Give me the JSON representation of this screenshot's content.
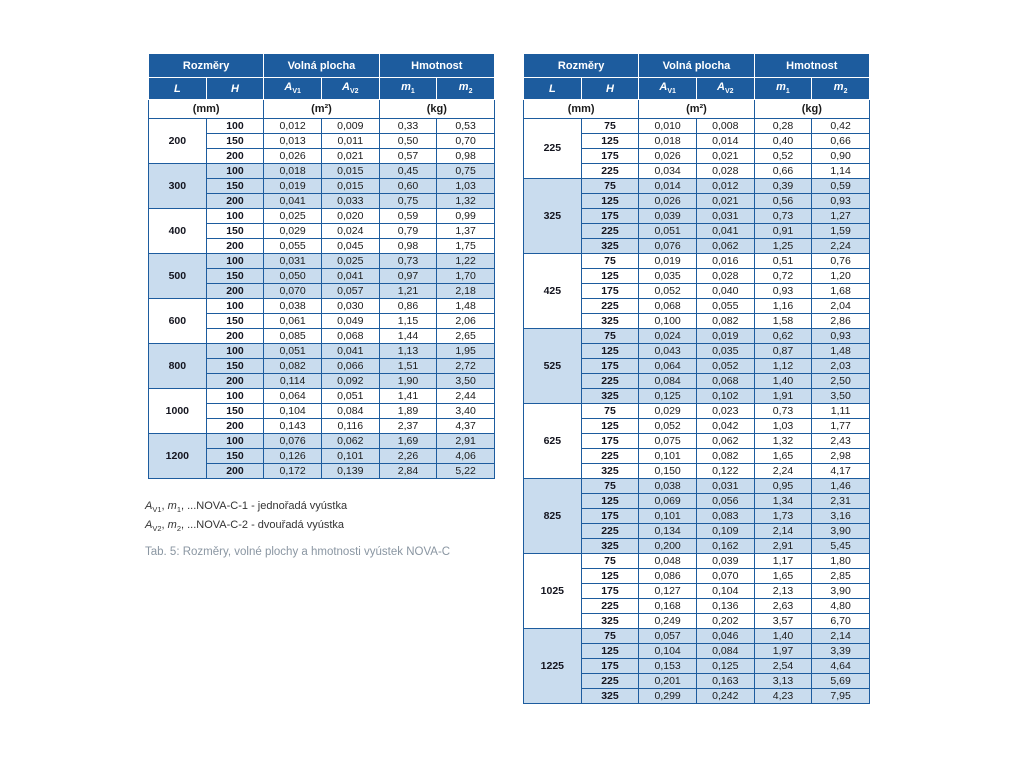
{
  "colors": {
    "header_bg": "#1d5c9e",
    "header_text": "#ffffff",
    "shaded_row_bg": "#c9dcee",
    "border": "#1d5c9e",
    "caption_text": "#8a96a2"
  },
  "tables": [
    {
      "header": {
        "groups": [
          "Rozměry",
          "Volná plocha",
          "Hmotnost"
        ],
        "columns": [
          [
            {
              "t": "L",
              "style": "italic"
            }
          ],
          [
            {
              "t": "H",
              "style": "italic"
            }
          ],
          [
            {
              "t": "A",
              "style": "italic"
            },
            {
              "t": "V1",
              "style": "sub"
            }
          ],
          [
            {
              "t": "A",
              "style": "italic"
            },
            {
              "t": "V2",
              "style": "sub"
            }
          ],
          [
            {
              "t": "m",
              "style": "italic"
            },
            {
              "t": "1",
              "style": "sub"
            }
          ],
          [
            {
              "t": "m",
              "style": "italic"
            },
            {
              "t": "2",
              "style": "sub"
            }
          ]
        ],
        "units": [
          "(mm)",
          "(m²)",
          "(kg)"
        ]
      },
      "groups": [
        {
          "L": "200",
          "shaded": false,
          "rows": [
            [
              "100",
              "0,012",
              "0,009",
              "0,33",
              "0,53"
            ],
            [
              "150",
              "0,013",
              "0,011",
              "0,50",
              "0,70"
            ],
            [
              "200",
              "0,026",
              "0,021",
              "0,57",
              "0,98"
            ]
          ]
        },
        {
          "L": "300",
          "shaded": true,
          "rows": [
            [
              "100",
              "0,018",
              "0,015",
              "0,45",
              "0,75"
            ],
            [
              "150",
              "0,019",
              "0,015",
              "0,60",
              "1,03"
            ],
            [
              "200",
              "0,041",
              "0,033",
              "0,75",
              "1,32"
            ]
          ]
        },
        {
          "L": "400",
          "shaded": false,
          "rows": [
            [
              "100",
              "0,025",
              "0,020",
              "0,59",
              "0,99"
            ],
            [
              "150",
              "0,029",
              "0,024",
              "0,79",
              "1,37"
            ],
            [
              "200",
              "0,055",
              "0,045",
              "0,98",
              "1,75"
            ]
          ]
        },
        {
          "L": "500",
          "shaded": true,
          "rows": [
            [
              "100",
              "0,031",
              "0,025",
              "0,73",
              "1,22"
            ],
            [
              "150",
              "0,050",
              "0,041",
              "0,97",
              "1,70"
            ],
            [
              "200",
              "0,070",
              "0,057",
              "1,21",
              "2,18"
            ]
          ]
        },
        {
          "L": "600",
          "shaded": false,
          "rows": [
            [
              "100",
              "0,038",
              "0,030",
              "0,86",
              "1,48"
            ],
            [
              "150",
              "0,061",
              "0,049",
              "1,15",
              "2,06"
            ],
            [
              "200",
              "0,085",
              "0,068",
              "1,44",
              "2,65"
            ]
          ]
        },
        {
          "L": "800",
          "shaded": true,
          "rows": [
            [
              "100",
              "0,051",
              "0,041",
              "1,13",
              "1,95"
            ],
            [
              "150",
              "0,082",
              "0,066",
              "1,51",
              "2,72"
            ],
            [
              "200",
              "0,114",
              "0,092",
              "1,90",
              "3,50"
            ]
          ]
        },
        {
          "L": "1000",
          "shaded": false,
          "rows": [
            [
              "100",
              "0,064",
              "0,051",
              "1,41",
              "2,44"
            ],
            [
              "150",
              "0,104",
              "0,084",
              "1,89",
              "3,40"
            ],
            [
              "200",
              "0,143",
              "0,116",
              "2,37",
              "4,37"
            ]
          ]
        },
        {
          "L": "1200",
          "shaded": true,
          "rows": [
            [
              "100",
              "0,076",
              "0,062",
              "1,69",
              "2,91"
            ],
            [
              "150",
              "0,126",
              "0,101",
              "2,26",
              "4,06"
            ],
            [
              "200",
              "0,172",
              "0,139",
              "2,84",
              "5,22"
            ]
          ]
        }
      ]
    },
    {
      "header": {
        "groups": [
          "Rozměry",
          "Volná plocha",
          "Hmotnost"
        ],
        "columns": [
          [
            {
              "t": "L",
              "style": "italic"
            }
          ],
          [
            {
              "t": "H",
              "style": "italic"
            }
          ],
          [
            {
              "t": "A",
              "style": "italic"
            },
            {
              "t": "V1",
              "style": "sub"
            }
          ],
          [
            {
              "t": "A",
              "style": "italic"
            },
            {
              "t": "V2",
              "style": "sub"
            }
          ],
          [
            {
              "t": "m",
              "style": "italic"
            },
            {
              "t": "1",
              "style": "sub"
            }
          ],
          [
            {
              "t": "m",
              "style": "italic"
            },
            {
              "t": "2",
              "style": "sub"
            }
          ]
        ],
        "units": [
          "(mm)",
          "(m²)",
          "(kg)"
        ]
      },
      "groups": [
        {
          "L": "225",
          "shaded": false,
          "rows": [
            [
              "75",
              "0,010",
              "0,008",
              "0,28",
              "0,42"
            ],
            [
              "125",
              "0,018",
              "0,014",
              "0,40",
              "0,66"
            ],
            [
              "175",
              "0,026",
              "0,021",
              "0,52",
              "0,90"
            ],
            [
              "225",
              "0,034",
              "0,028",
              "0,66",
              "1,14"
            ]
          ]
        },
        {
          "L": "325",
          "shaded": true,
          "rows": [
            [
              "75",
              "0,014",
              "0,012",
              "0,39",
              "0,59"
            ],
            [
              "125",
              "0,026",
              "0,021",
              "0,56",
              "0,93"
            ],
            [
              "175",
              "0,039",
              "0,031",
              "0,73",
              "1,27"
            ],
            [
              "225",
              "0,051",
              "0,041",
              "0,91",
              "1,59"
            ],
            [
              "325",
              "0,076",
              "0,062",
              "1,25",
              "2,24"
            ]
          ]
        },
        {
          "L": "425",
          "shaded": false,
          "rows": [
            [
              "75",
              "0,019",
              "0,016",
              "0,51",
              "0,76"
            ],
            [
              "125",
              "0,035",
              "0,028",
              "0,72",
              "1,20"
            ],
            [
              "175",
              "0,052",
              "0,040",
              "0,93",
              "1,68"
            ],
            [
              "225",
              "0,068",
              "0,055",
              "1,16",
              "2,04"
            ],
            [
              "325",
              "0,100",
              "0,082",
              "1,58",
              "2,86"
            ]
          ]
        },
        {
          "L": "525",
          "shaded": true,
          "rows": [
            [
              "75",
              "0,024",
              "0,019",
              "0,62",
              "0,93"
            ],
            [
              "125",
              "0,043",
              "0,035",
              "0,87",
              "1,48"
            ],
            [
              "175",
              "0,064",
              "0,052",
              "1,12",
              "2,03"
            ],
            [
              "225",
              "0,084",
              "0,068",
              "1,40",
              "2,50"
            ],
            [
              "325",
              "0,125",
              "0,102",
              "1,91",
              "3,50"
            ]
          ]
        },
        {
          "L": "625",
          "shaded": false,
          "rows": [
            [
              "75",
              "0,029",
              "0,023",
              "0,73",
              "1,11"
            ],
            [
              "125",
              "0,052",
              "0,042",
              "1,03",
              "1,77"
            ],
            [
              "175",
              "0,075",
              "0,062",
              "1,32",
              "2,43"
            ],
            [
              "225",
              "0,101",
              "0,082",
              "1,65",
              "2,98"
            ],
            [
              "325",
              "0,150",
              "0,122",
              "2,24",
              "4,17"
            ]
          ]
        },
        {
          "L": "825",
          "shaded": true,
          "rows": [
            [
              "75",
              "0,038",
              "0,031",
              "0,95",
              "1,46"
            ],
            [
              "125",
              "0,069",
              "0,056",
              "1,34",
              "2,31"
            ],
            [
              "175",
              "0,101",
              "0,083",
              "1,73",
              "3,16"
            ],
            [
              "225",
              "0,134",
              "0,109",
              "2,14",
              "3,90"
            ],
            [
              "325",
              "0,200",
              "0,162",
              "2,91",
              "5,45"
            ]
          ]
        },
        {
          "L": "1025",
          "shaded": false,
          "rows": [
            [
              "75",
              "0,048",
              "0,039",
              "1,17",
              "1,80"
            ],
            [
              "125",
              "0,086",
              "0,070",
              "1,65",
              "2,85"
            ],
            [
              "175",
              "0,127",
              "0,104",
              "2,13",
              "3,90"
            ],
            [
              "225",
              "0,168",
              "0,136",
              "2,63",
              "4,80"
            ],
            [
              "325",
              "0,249",
              "0,202",
              "3,57",
              "6,70"
            ]
          ]
        },
        {
          "L": "1225",
          "shaded": true,
          "rows": [
            [
              "75",
              "0,057",
              "0,046",
              "1,40",
              "2,14"
            ],
            [
              "125",
              "0,104",
              "0,084",
              "1,97",
              "3,39"
            ],
            [
              "175",
              "0,153",
              "0,125",
              "2,54",
              "4,64"
            ],
            [
              "225",
              "0,201",
              "0,163",
              "3,13",
              "5,69"
            ],
            [
              "325",
              "0,299",
              "0,242",
              "4,23",
              "7,95"
            ]
          ]
        }
      ]
    }
  ],
  "legend": [
    [
      {
        "t": "A",
        "style": "italic"
      },
      {
        "t": "V1",
        "style": "sub"
      },
      {
        "t": ", ",
        "style": ""
      },
      {
        "t": "m",
        "style": "italic"
      },
      {
        "t": "1",
        "style": "sub"
      },
      {
        "t": ", ...NOVA-C-1 - jednořadá vyústka",
        "style": ""
      }
    ],
    [
      {
        "t": "A",
        "style": "italic"
      },
      {
        "t": "V2",
        "style": "sub"
      },
      {
        "t": ", ",
        "style": ""
      },
      {
        "t": "m",
        "style": "italic"
      },
      {
        "t": "2",
        "style": "sub"
      },
      {
        "t": ", ...NOVA-C-2 - dvouřadá vyústka",
        "style": ""
      }
    ]
  ],
  "caption": "Tab. 5: Rozměry, volné plochy a hmotnosti vyústek NOVA-C"
}
